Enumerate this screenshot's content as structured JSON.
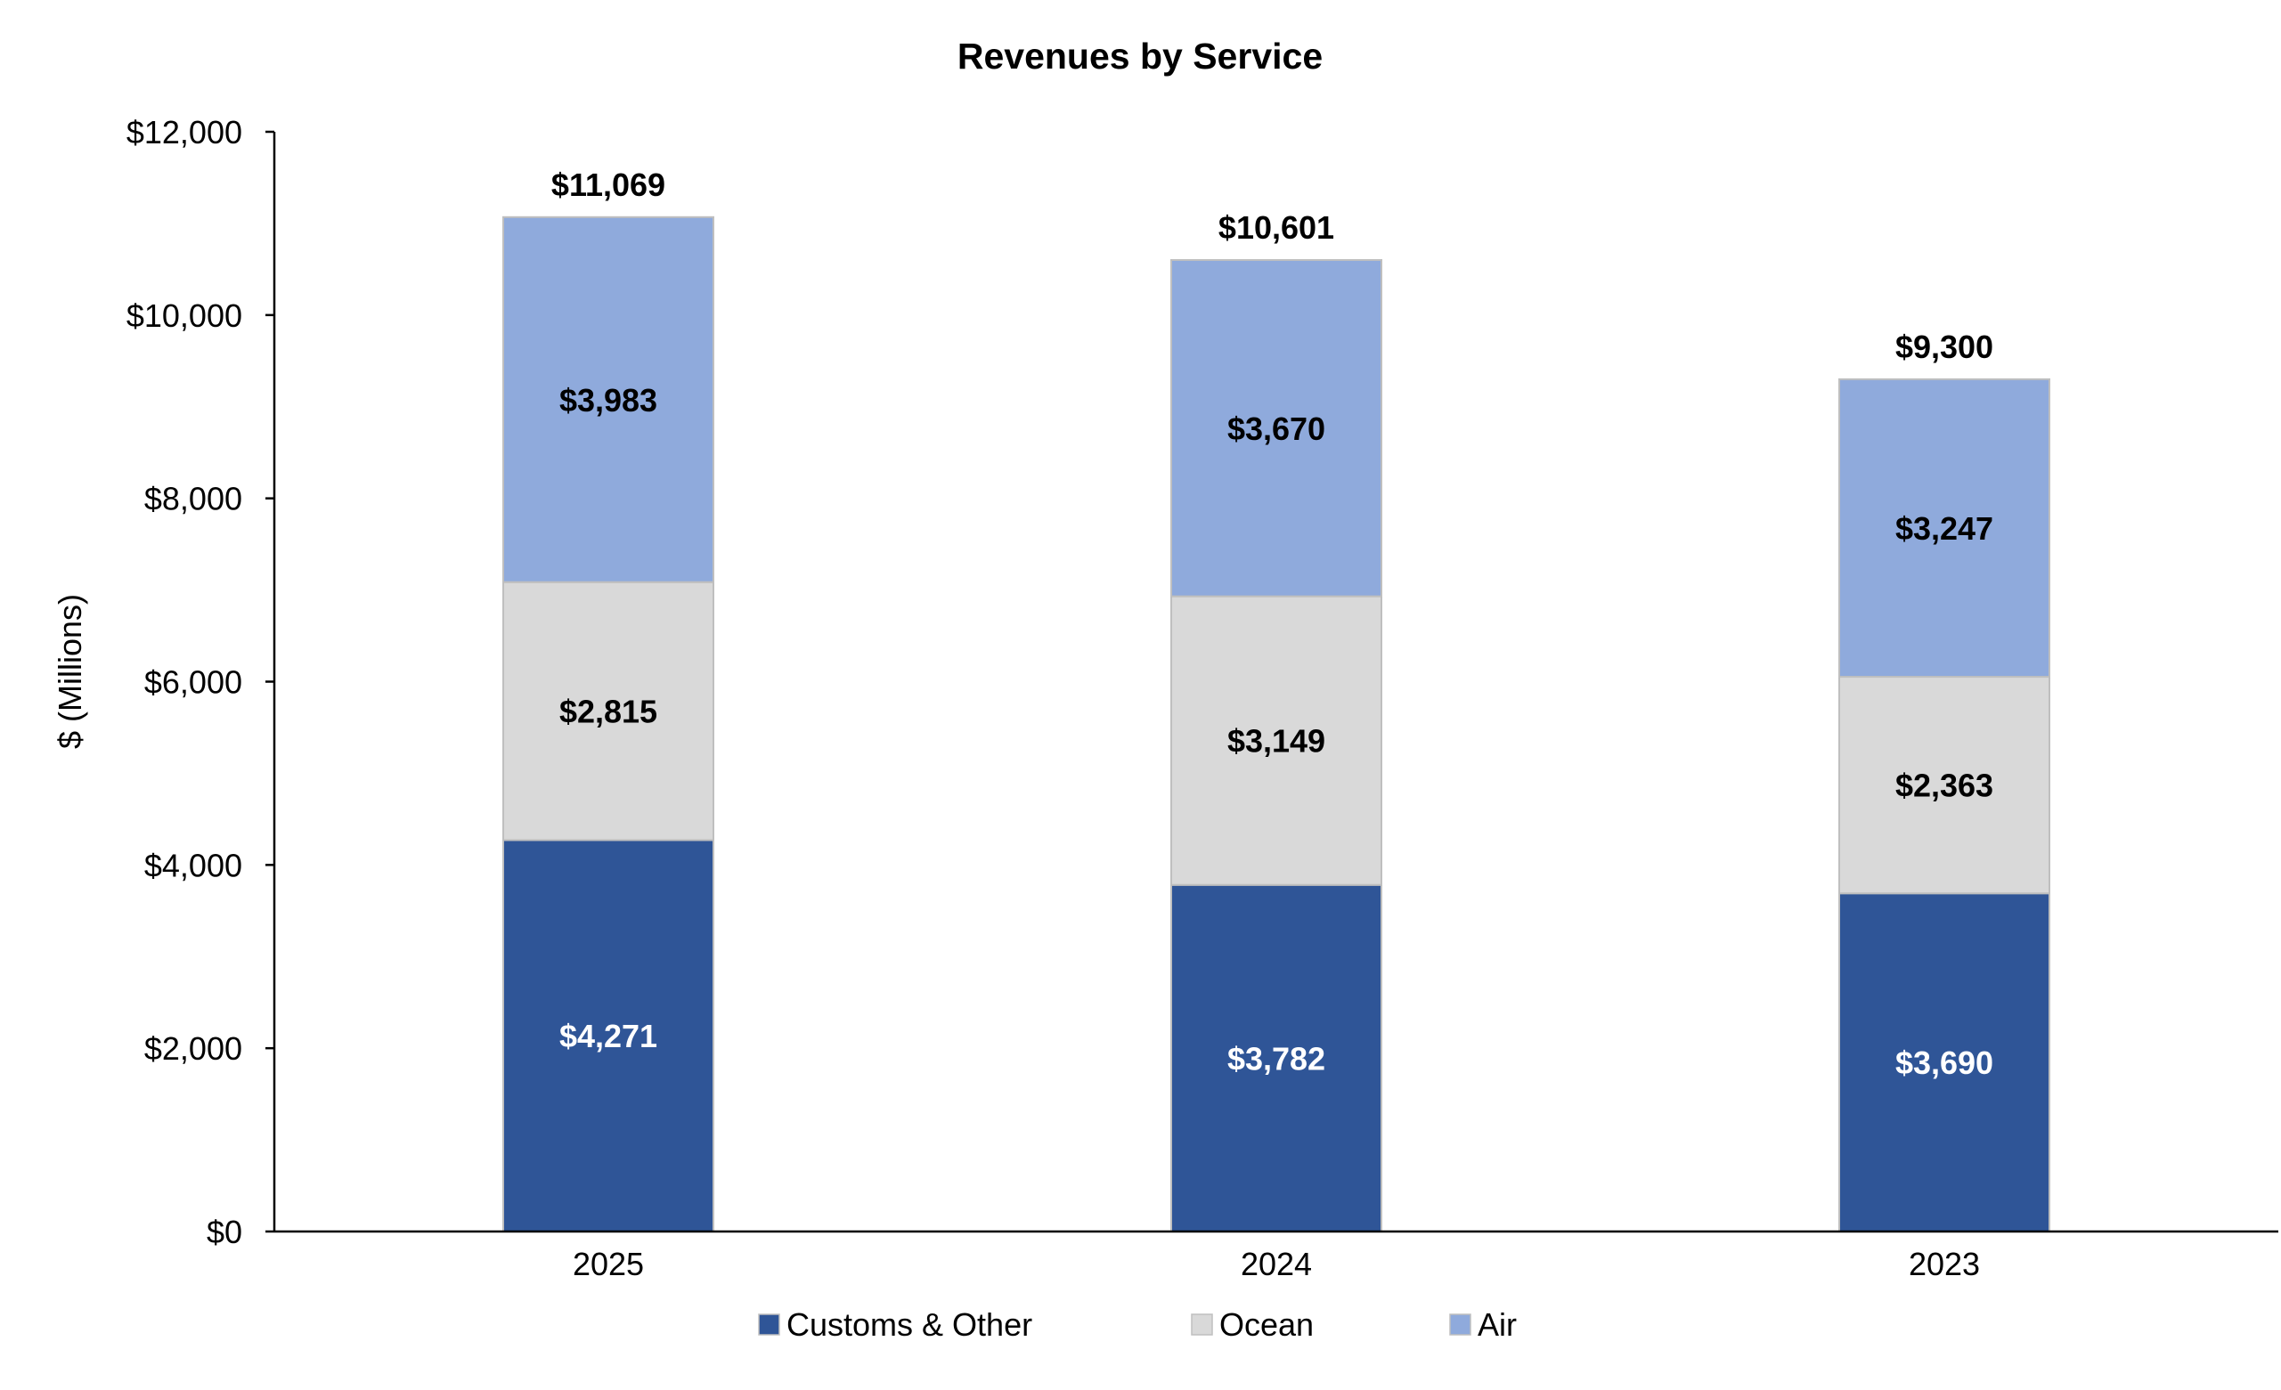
{
  "chart_data": {
    "type": "bar",
    "stacked": true,
    "title": "Revenues by Service",
    "xlabel": "",
    "ylabel": "$ (Millions)",
    "ylim": [
      0,
      12000
    ],
    "yticks": [
      0,
      2000,
      4000,
      6000,
      8000,
      10000,
      12000
    ],
    "ytick_labels": [
      "$0",
      "$2,000",
      "$4,000",
      "$6,000",
      "$8,000",
      "$10,000",
      "$12,000"
    ],
    "grid": false,
    "legend_position": "bottom",
    "categories": [
      "2025",
      "2024",
      "2023"
    ],
    "series": [
      {
        "name": "Customs & Other",
        "color": "#2F5597",
        "label_color": "#FFFFFF",
        "values": [
          4271,
          3782,
          3690
        ],
        "labels": [
          "$4,271",
          "$3,782",
          "$3,690"
        ]
      },
      {
        "name": "Ocean",
        "color": "#D9D9D9",
        "label_color": "#000000",
        "values": [
          2815,
          3149,
          2363
        ],
        "labels": [
          "$2,815",
          "$3,149",
          "$2,363"
        ]
      },
      {
        "name": "Air",
        "color": "#8FAADC",
        "label_color": "#000000",
        "values": [
          3983,
          3670,
          3247
        ],
        "labels": [
          "$3,983",
          "$3,670",
          "$3,247"
        ]
      }
    ],
    "totals": [
      11069,
      10601,
      9300
    ],
    "total_labels": [
      "$11,069",
      "$10,601",
      "$9,300"
    ]
  }
}
